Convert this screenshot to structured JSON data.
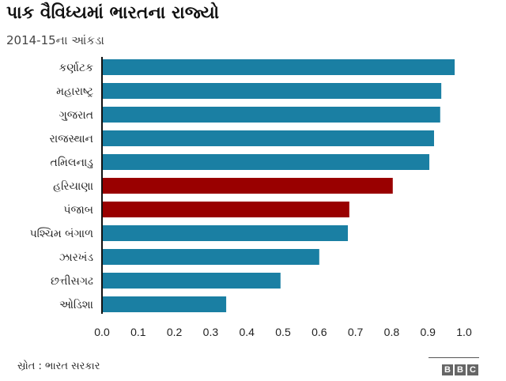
{
  "chart_data": {
    "type": "bar",
    "orientation": "horizontal",
    "title": "પાક વૈવિધ્યમાં ભારતના રાજ્યો",
    "subtitle": "2014-15ના આંકડા",
    "categories": [
      "કર્ણાટક",
      "મહારાષ્ટ્ર",
      "ગુજરાત",
      "રાજસ્થાન",
      "તમિલનાડુ",
      "હરિયાણા",
      "પંજાબ",
      "પશ્ચિમ બંગાળ",
      "ઝારખંડ",
      "છત્તીસગઢ",
      "ઓડિશા"
    ],
    "values": [
      0.974,
      0.937,
      0.934,
      0.917,
      0.904,
      0.803,
      0.683,
      0.679,
      0.6,
      0.493,
      0.343
    ],
    "colors": [
      "#1a7fa3",
      "#1a7fa3",
      "#1a7fa3",
      "#1a7fa3",
      "#1a7fa3",
      "#990000",
      "#990000",
      "#1a7fa3",
      "#1a7fa3",
      "#1a7fa3",
      "#1a7fa3"
    ],
    "xlim": [
      0,
      1.0
    ],
    "xticks": [
      "0.0",
      "0.1",
      "0.2",
      "0.3",
      "0.4",
      "0.5",
      "0.6",
      "0.7",
      "0.8",
      "0.9",
      "1.0"
    ],
    "grid": false
  },
  "footer": {
    "source": "સ્રોત : ભારત સરકાર",
    "logo": [
      "B",
      "B",
      "C"
    ]
  }
}
